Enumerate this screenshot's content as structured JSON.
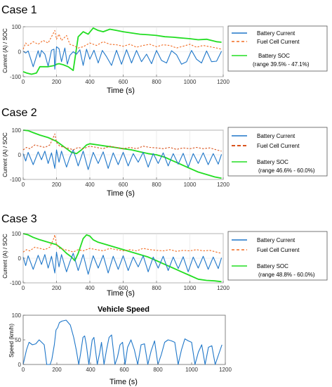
{
  "colors": {
    "battery_current": "#1f77c9",
    "fuel_cell_current": "#f26b21",
    "fuel_cell_current_case2": "#d9541e",
    "battery_soc": "#22dd22",
    "vehicle_speed": "#1f77c9"
  },
  "chart_data": [
    {
      "type": "line",
      "title": "Case 1",
      "xlabel": "Time (s)",
      "ylabel": "Current (A) / SOC",
      "xlim": [
        0,
        1200
      ],
      "ylim": [
        -100,
        100
      ],
      "xticks": [
        "0",
        "200",
        "400",
        "600",
        "800",
        "1000",
        "1200"
      ],
      "yticks": [
        "-100",
        "0",
        "100"
      ],
      "grid": true,
      "legend": [
        "Battery Current",
        "Fuel Cell Current",
        "Battery SOC",
        "(range 39.5% - 47.1%)"
      ],
      "legend_placement": "right",
      "series": [
        {
          "name": "Battery Current",
          "style": "solid",
          "x": [
            0,
            15,
            30,
            60,
            90,
            100,
            110,
            130,
            150,
            170,
            185,
            190,
            200,
            215,
            230,
            250,
            265,
            280,
            300,
            320,
            340,
            360,
            380,
            400,
            425,
            450,
            475,
            500,
            530,
            560,
            590,
            620,
            650,
            680,
            710,
            740,
            770,
            800,
            830,
            860,
            890,
            920,
            950,
            980,
            1010,
            1040,
            1070,
            1100,
            1130,
            1160,
            1190
          ],
          "y": [
            2,
            -5,
            3,
            -60,
            4,
            -22,
            5,
            -10,
            -58,
            6,
            10,
            -70,
            20,
            12,
            -40,
            15,
            -50,
            -15,
            0,
            -10,
            8,
            -55,
            10,
            -30,
            6,
            -45,
            5,
            -20,
            -55,
            6,
            -50,
            8,
            -45,
            5,
            -40,
            -10,
            -48,
            5,
            -35,
            -45,
            4,
            -12,
            -50,
            -40,
            5,
            -30,
            -45,
            3,
            -40,
            -38,
            2
          ]
        },
        {
          "name": "Fuel Cell Current",
          "style": "dashed",
          "x": [
            0,
            15,
            30,
            60,
            90,
            120,
            150,
            170,
            190,
            200,
            215,
            230,
            260,
            280,
            300,
            330,
            360,
            400,
            440,
            480,
            520,
            560,
            600,
            640,
            680,
            720,
            760,
            800,
            840,
            880,
            920,
            960,
            1000,
            1040,
            1080,
            1120,
            1160,
            1190
          ],
          "y": [
            10,
            35,
            25,
            40,
            30,
            45,
            35,
            60,
            85,
            50,
            70,
            45,
            65,
            30,
            25,
            15,
            20,
            35,
            25,
            40,
            30,
            28,
            22,
            30,
            18,
            25,
            30,
            20,
            28,
            25,
            15,
            22,
            30,
            18,
            25,
            20,
            15,
            10
          ]
        },
        {
          "name": "Battery SOC",
          "style": "solid",
          "x": [
            0,
            20,
            50,
            80,
            100,
            150,
            190,
            200,
            215,
            240,
            270,
            290,
            300,
            330,
            360,
            390,
            420,
            450,
            480,
            520,
            560,
            600,
            650,
            700,
            750,
            800,
            850,
            900,
            950,
            1000,
            1050,
            1100,
            1130,
            1160,
            1190
          ],
          "y": [
            -80,
            -85,
            -90,
            -85,
            -60,
            -60,
            -55,
            -50,
            -48,
            -52,
            -60,
            -70,
            -75,
            60,
            80,
            70,
            95,
            85,
            80,
            90,
            85,
            80,
            75,
            70,
            68,
            65,
            60,
            58,
            55,
            52,
            48,
            50,
            45,
            40,
            38
          ]
        }
      ]
    },
    {
      "type": "line",
      "title": "Case 2",
      "xlabel": "Time (s)",
      "ylabel": "Current (A) / SOC",
      "xlim": [
        0,
        1200
      ],
      "ylim": [
        -100,
        100
      ],
      "xticks": [
        "0",
        "200",
        "400",
        "600",
        "800",
        "1000",
        "1200"
      ],
      "yticks": [
        "-100",
        "0",
        "100"
      ],
      "grid": true,
      "legend": [
        "Battery Current",
        "Fuel Cell Current",
        "Battery SOC",
        "(range 46.6% - 60.0%)"
      ],
      "legend_placement": "right",
      "series": [
        {
          "name": "Battery Current",
          "style": "solid",
          "x": [
            0,
            15,
            30,
            60,
            90,
            110,
            130,
            150,
            170,
            190,
            200,
            215,
            230,
            260,
            280,
            300,
            330,
            360,
            390,
            420,
            450,
            480,
            510,
            540,
            570,
            600,
            630,
            660,
            690,
            720,
            750,
            780,
            810,
            840,
            870,
            900,
            930,
            960,
            990,
            1020,
            1050,
            1080,
            1110,
            1140,
            1170,
            1190
          ],
          "y": [
            5,
            -25,
            10,
            -40,
            12,
            -20,
            15,
            -35,
            8,
            -55,
            20,
            -30,
            15,
            -50,
            -10,
            20,
            -45,
            15,
            -60,
            10,
            -35,
            12,
            -55,
            8,
            -40,
            10,
            -45,
            5,
            -30,
            10,
            -50,
            5,
            -35,
            8,
            -45,
            5,
            -38,
            6,
            -50,
            5,
            -35,
            8,
            -40,
            5,
            -38,
            2
          ]
        },
        {
          "name": "Fuel Cell Current",
          "style": "dashed",
          "x": [
            0,
            20,
            40,
            70,
            100,
            130,
            160,
            180,
            190,
            200,
            220,
            250,
            280,
            300,
            330,
            360,
            400,
            440,
            480,
            520,
            560,
            600,
            640,
            680,
            720,
            760,
            800,
            840,
            880,
            920,
            960,
            1000,
            1040,
            1080,
            1120,
            1160,
            1190
          ],
          "y": [
            20,
            30,
            25,
            40,
            35,
            30,
            40,
            70,
            85,
            50,
            35,
            30,
            25,
            20,
            30,
            25,
            35,
            30,
            25,
            35,
            30,
            25,
            30,
            25,
            35,
            30,
            28,
            25,
            30,
            22,
            28,
            25,
            30,
            25,
            28,
            20,
            15
          ]
        },
        {
          "name": "Battery SOC",
          "style": "solid",
          "x": [
            0,
            30,
            60,
            100,
            150,
            200,
            230,
            260,
            290,
            320,
            350,
            380,
            400,
            450,
            500,
            550,
            600,
            650,
            700,
            750,
            800,
            850,
            900,
            950,
            1000,
            1050,
            1100,
            1150,
            1190
          ],
          "y": [
            100,
            98,
            90,
            80,
            70,
            55,
            40,
            25,
            10,
            5,
            20,
            40,
            45,
            40,
            35,
            30,
            25,
            20,
            12,
            5,
            0,
            -10,
            -25,
            -40,
            -55,
            -70,
            -80,
            -90,
            -95
          ]
        }
      ]
    },
    {
      "type": "line",
      "title": "Case 3",
      "xlabel": "Time (s)",
      "ylabel": "Current (A) / SOC",
      "xlim": [
        0,
        1200
      ],
      "ylim": [
        -100,
        100
      ],
      "xticks": [
        "0",
        "200",
        "400",
        "600",
        "800",
        "1000",
        "1200"
      ],
      "yticks": [
        "-100",
        "0",
        "100"
      ],
      "grid": true,
      "legend": [
        "Battery Current",
        "Fuel Cell Current",
        "Battery SOC",
        "(range 48.8% - 60.0%)"
      ],
      "legend_placement": "right",
      "series": [
        {
          "name": "Battery Current",
          "style": "solid",
          "x": [
            0,
            15,
            30,
            60,
            90,
            110,
            130,
            150,
            170,
            190,
            200,
            215,
            230,
            260,
            280,
            300,
            330,
            360,
            390,
            420,
            450,
            480,
            510,
            540,
            570,
            600,
            630,
            660,
            690,
            720,
            750,
            780,
            810,
            840,
            870,
            900,
            930,
            960,
            990,
            1020,
            1050,
            1080,
            1110,
            1140,
            1170,
            1190
          ],
          "y": [
            5,
            -30,
            10,
            -45,
            12,
            -25,
            15,
            -40,
            8,
            -60,
            25,
            -35,
            15,
            -55,
            -15,
            20,
            -50,
            15,
            -65,
            10,
            -40,
            12,
            -60,
            8,
            -45,
            10,
            -50,
            5,
            -35,
            10,
            -55,
            5,
            -40,
            8,
            -50,
            5,
            -42,
            6,
            -55,
            5,
            -40,
            8,
            -45,
            5,
            -42,
            2
          ]
        },
        {
          "name": "Fuel Cell Current",
          "style": "dashed",
          "x": [
            0,
            20,
            40,
            70,
            100,
            130,
            160,
            180,
            190,
            200,
            220,
            250,
            280,
            300,
            330,
            360,
            400,
            440,
            480,
            520,
            560,
            600,
            640,
            680,
            720,
            760,
            800,
            840,
            880,
            920,
            960,
            1000,
            1040,
            1080,
            1120,
            1160,
            1190
          ],
          "y": [
            25,
            35,
            30,
            45,
            40,
            35,
            45,
            75,
            95,
            55,
            40,
            35,
            30,
            25,
            35,
            30,
            40,
            35,
            30,
            40,
            35,
            30,
            35,
            30,
            40,
            35,
            32,
            30,
            35,
            28,
            32,
            30,
            35,
            30,
            32,
            25,
            20
          ]
        },
        {
          "name": "Battery SOC",
          "style": "solid",
          "x": [
            0,
            30,
            60,
            100,
            150,
            200,
            230,
            260,
            290,
            310,
            330,
            360,
            380,
            400,
            420,
            450,
            500,
            550,
            600,
            650,
            700,
            750,
            800,
            850,
            900,
            950,
            1000,
            1050,
            1100,
            1150,
            1190
          ],
          "y": [
            100,
            95,
            85,
            75,
            65,
            55,
            40,
            20,
            5,
            -10,
            20,
            80,
            95,
            90,
            75,
            65,
            55,
            45,
            35,
            25,
            15,
            5,
            -10,
            -25,
            -40,
            -55,
            -70,
            -85,
            -90,
            -92,
            -95
          ]
        }
      ]
    },
    {
      "type": "line",
      "title": "Vehicle Speed",
      "xlabel": "Time (s)",
      "ylabel": "Speed (km/h)",
      "xlim": [
        0,
        1200
      ],
      "ylim": [
        0,
        100
      ],
      "xticks": [
        "0",
        "200",
        "400",
        "600",
        "800",
        "1000",
        "1200"
      ],
      "yticks": [
        "0",
        "50",
        "100"
      ],
      "grid": false,
      "series": [
        {
          "name": "Vehicle Speed",
          "style": "solid",
          "x": [
            0,
            20,
            35,
            55,
            75,
            95,
            110,
            125,
            140,
            160,
            170,
            185,
            195,
            205,
            215,
            230,
            255,
            280,
            300,
            315,
            330,
            340,
            355,
            365,
            375,
            390,
            400,
            410,
            420,
            440,
            455,
            465,
            480,
            495,
            510,
            525,
            545,
            560,
            575,
            590,
            605,
            620,
            640,
            660,
            680,
            700,
            720,
            740,
            760,
            780,
            800,
            820,
            840,
            860,
            880,
            900,
            920,
            940,
            960,
            980,
            1000,
            1020,
            1040,
            1060,
            1080,
            1100,
            1120,
            1140,
            1160,
            1180
          ],
          "y": [
            0,
            30,
            45,
            40,
            42,
            50,
            45,
            40,
            0,
            0,
            10,
            40,
            70,
            75,
            85,
            88,
            90,
            80,
            55,
            30,
            0,
            20,
            55,
            58,
            40,
            0,
            25,
            50,
            55,
            0,
            25,
            45,
            0,
            30,
            55,
            60,
            0,
            15,
            40,
            45,
            0,
            35,
            50,
            30,
            0,
            40,
            42,
            0,
            28,
            48,
            0,
            20,
            45,
            50,
            48,
            45,
            0,
            30,
            52,
            48,
            45,
            0,
            25,
            40,
            0,
            35,
            38,
            0,
            20,
            40
          ]
        }
      ]
    }
  ]
}
